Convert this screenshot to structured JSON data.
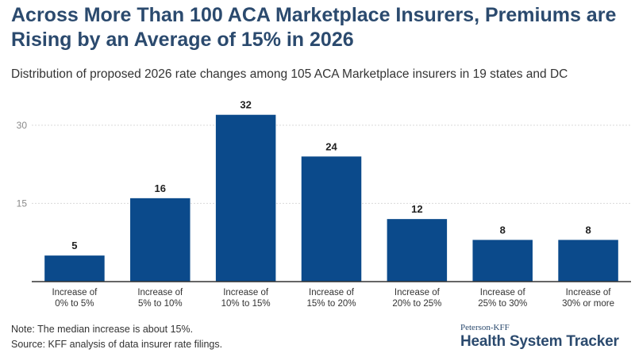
{
  "title": "Across More Than 100 ACA Marketplace Insurers, Premiums are Rising by an Average of 15% in 2026",
  "subtitle": "Distribution of proposed 2026 rate changes among 105 ACA Marketplace insurers in 19 states and DC",
  "note": "Note: The median increase is about 15%.",
  "source": "Source: KFF analysis of data insurer rate filings.",
  "brand": {
    "small": "Peterson-KFF",
    "large": "Health System Tracker"
  },
  "colors": {
    "bar": "#0b4a8b",
    "title": "#2b4a6e",
    "grid": "#d9d9d9",
    "axis": "#333333"
  },
  "chart_data": {
    "type": "bar",
    "categories": [
      [
        "Increase of",
        "0% to 5%"
      ],
      [
        "Increase of",
        "5% to 10%"
      ],
      [
        "Increase of",
        "10% to 15%"
      ],
      [
        "Increase of",
        "15% to 20%"
      ],
      [
        "Increase of",
        "20% to 25%"
      ],
      [
        "Increase of",
        "25% to 30%"
      ],
      [
        "Increase of",
        "30% or more"
      ]
    ],
    "values": [
      5,
      16,
      32,
      24,
      12,
      8,
      8
    ],
    "yticks": [
      15,
      30
    ],
    "ylim": [
      0,
      35
    ],
    "grid": true,
    "legend": "none",
    "data_labels": true
  }
}
